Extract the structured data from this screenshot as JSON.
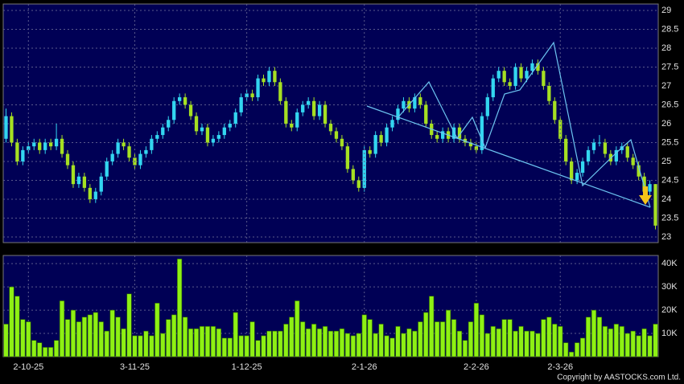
{
  "chart_data": [
    {
      "type": "candlestick",
      "up_color": "#33d6f0",
      "down_color": "#a6e022",
      "xlim": [
        -0.5,
        116.5
      ],
      "ylim": [
        22.85,
        29.17
      ],
      "yticks": [
        23,
        23.5,
        24,
        24.5,
        25,
        25.5,
        26,
        26.5,
        27,
        27.5,
        28,
        28.5,
        29
      ],
      "grid": true,
      "open": [
        25.6,
        26.2,
        25.5,
        25.0,
        25.3,
        25.4,
        25.5,
        25.3,
        25.5,
        25.4,
        25.6,
        25.2,
        24.9,
        24.4,
        24.6,
        24.3,
        24.0,
        24.2,
        24.6,
        25.0,
        25.2,
        25.5,
        25.4,
        25.1,
        24.9,
        25.2,
        25.3,
        25.6,
        25.7,
        25.9,
        26.1,
        26.6,
        26.7,
        26.5,
        26.2,
        25.8,
        25.9,
        25.5,
        25.6,
        25.7,
        25.9,
        26.0,
        26.3,
        26.7,
        26.8,
        26.7,
        27.2,
        27.1,
        27.4,
        27.1,
        26.6,
        26.0,
        25.9,
        26.3,
        26.5,
        26.6,
        26.2,
        26.5,
        26.0,
        25.8,
        25.6,
        25.4,
        24.8,
        24.5,
        24.3,
        25.3,
        25.2,
        25.7,
        25.5,
        25.9,
        26.1,
        26.4,
        26.6,
        26.4,
        26.7,
        26.5,
        26.0,
        25.7,
        25.6,
        25.8,
        25.6,
        25.9,
        25.6,
        25.5,
        25.4,
        25.3,
        26.2,
        26.7,
        27.2,
        27.4,
        27.1,
        27.0,
        27.5,
        27.2,
        27.4,
        27.6,
        27.4,
        27.0,
        26.6,
        26.1,
        25.6,
        25.0,
        24.5,
        24.7,
        25.0,
        25.3,
        25.5,
        25.5,
        25.2,
        25.0,
        25.3,
        25.4,
        25.1,
        24.9,
        24.6,
        24.2,
        24.4
      ],
      "high": [
        26.4,
        26.3,
        25.6,
        25.4,
        25.5,
        25.6,
        25.6,
        25.6,
        25.6,
        26.0,
        25.7,
        25.3,
        25.0,
        24.7,
        24.7,
        24.4,
        24.3,
        24.7,
        25.1,
        25.3,
        25.6,
        25.6,
        25.5,
        25.2,
        25.3,
        25.4,
        25.7,
        25.8,
        26.0,
        26.2,
        26.7,
        26.8,
        26.8,
        26.6,
        26.3,
        26.0,
        26.0,
        25.7,
        25.8,
        26.0,
        26.1,
        26.4,
        26.8,
        26.9,
        26.9,
        27.3,
        27.3,
        27.5,
        27.5,
        27.2,
        26.7,
        26.1,
        26.4,
        26.6,
        26.7,
        26.7,
        26.6,
        26.6,
        26.1,
        25.9,
        25.7,
        25.5,
        24.9,
        24.6,
        25.4,
        25.4,
        25.8,
        25.8,
        26.0,
        26.2,
        26.5,
        26.7,
        26.7,
        26.8,
        26.8,
        26.6,
        26.1,
        25.8,
        25.9,
        25.9,
        26.0,
        26.0,
        25.7,
        25.6,
        25.5,
        26.3,
        26.8,
        27.3,
        27.5,
        27.5,
        27.2,
        27.6,
        27.6,
        27.5,
        27.7,
        27.7,
        27.5,
        27.1,
        26.7,
        26.2,
        25.7,
        25.1,
        24.8,
        25.1,
        25.4,
        25.6,
        25.7,
        25.6,
        25.3,
        25.4,
        25.5,
        25.5,
        25.2,
        25.0,
        24.7,
        24.5,
        24.4
      ],
      "low": [
        25.5,
        25.4,
        24.9,
        24.9,
        25.2,
        25.3,
        25.2,
        25.2,
        25.3,
        25.3,
        25.1,
        24.8,
        24.3,
        24.3,
        24.2,
        23.9,
        23.9,
        24.1,
        24.5,
        24.9,
        25.1,
        25.3,
        25.0,
        24.8,
        24.8,
        25.1,
        25.2,
        25.5,
        25.6,
        25.8,
        26.0,
        26.5,
        26.4,
        26.1,
        25.7,
        25.7,
        25.4,
        25.4,
        25.5,
        25.6,
        25.8,
        25.9,
        26.2,
        26.6,
        26.6,
        26.6,
        27.0,
        27.0,
        27.0,
        26.5,
        25.9,
        25.8,
        25.8,
        26.2,
        26.4,
        26.1,
        26.1,
        25.9,
        25.7,
        25.5,
        25.3,
        24.7,
        24.4,
        24.2,
        24.2,
        25.1,
        25.1,
        25.4,
        25.4,
        25.8,
        26.0,
        26.3,
        26.3,
        26.3,
        26.4,
        25.9,
        25.6,
        25.5,
        25.5,
        25.5,
        25.5,
        25.5,
        25.4,
        25.3,
        25.2,
        25.2,
        26.1,
        26.6,
        27.1,
        27.0,
        26.9,
        26.9,
        27.1,
        27.1,
        27.3,
        27.3,
        26.9,
        26.5,
        26.0,
        25.5,
        24.9,
        24.4,
        24.4,
        24.6,
        24.9,
        25.2,
        25.4,
        25.1,
        24.9,
        24.9,
        25.2,
        25.0,
        24.8,
        24.5,
        24.1,
        24.1,
        23.2
      ],
      "close": [
        26.2,
        25.5,
        25.0,
        25.3,
        25.4,
        25.5,
        25.3,
        25.5,
        25.4,
        25.6,
        25.2,
        24.9,
        24.4,
        24.6,
        24.3,
        24.0,
        24.2,
        24.6,
        25.0,
        25.2,
        25.5,
        25.4,
        25.1,
        24.9,
        25.2,
        25.3,
        25.6,
        25.7,
        25.9,
        26.1,
        26.6,
        26.7,
        26.5,
        26.2,
        25.8,
        25.9,
        25.5,
        25.6,
        25.7,
        25.9,
        26.0,
        26.3,
        26.7,
        26.8,
        26.7,
        27.2,
        27.1,
        27.4,
        27.1,
        26.6,
        26.0,
        25.9,
        26.3,
        26.5,
        26.6,
        26.2,
        26.5,
        26.0,
        25.8,
        25.6,
        25.4,
        24.8,
        24.5,
        24.3,
        25.3,
        25.2,
        25.7,
        25.5,
        25.9,
        26.1,
        26.4,
        26.6,
        26.4,
        26.7,
        26.5,
        26.0,
        25.7,
        25.6,
        25.8,
        25.6,
        25.9,
        25.6,
        25.5,
        25.4,
        25.3,
        26.2,
        26.7,
        27.2,
        27.4,
        27.1,
        27.0,
        27.5,
        27.2,
        27.4,
        27.6,
        27.4,
        27.0,
        26.6,
        26.1,
        25.6,
        25.0,
        24.5,
        24.7,
        25.0,
        25.3,
        25.5,
        25.5,
        25.2,
        25.0,
        25.3,
        25.4,
        25.1,
        24.9,
        24.6,
        24.2,
        24.4,
        23.3
      ]
    },
    {
      "type": "bar",
      "color": "#8ef014",
      "xlim": [
        -0.5,
        116.5
      ],
      "ylim": [
        0,
        43500
      ],
      "yticks": [
        {
          "value": 10000,
          "label": "10K"
        },
        {
          "value": 20000,
          "label": "20K"
        },
        {
          "value": 30000,
          "label": "30K"
        },
        {
          "value": 40000,
          "label": "40K"
        }
      ],
      "xticks": [
        {
          "value": 4,
          "label": "2-10-25"
        },
        {
          "value": 23,
          "label": "3-11-25"
        },
        {
          "value": 43,
          "label": "1-12-25"
        },
        {
          "value": 64,
          "label": "2-1-26"
        },
        {
          "value": 84,
          "label": "2-2-26"
        },
        {
          "value": 99,
          "label": "2-3-26"
        }
      ],
      "grid": true,
      "values": [
        14000,
        30000,
        26000,
        16000,
        15000,
        7000,
        6000,
        4000,
        4000,
        7000,
        24000,
        16000,
        20000,
        15000,
        17000,
        18000,
        19000,
        15000,
        11000,
        20000,
        17000,
        12000,
        27000,
        9000,
        9000,
        11000,
        9000,
        23000,
        10000,
        16000,
        18000,
        42000,
        17000,
        12000,
        12000,
        13000,
        13000,
        13000,
        12000,
        8000,
        8000,
        19000,
        9000,
        9000,
        15000,
        7000,
        9000,
        11000,
        11000,
        11000,
        14000,
        17000,
        24000,
        15000,
        12000,
        14000,
        12000,
        13000,
        11000,
        11000,
        12000,
        10000,
        9000,
        10000,
        18000,
        16000,
        10000,
        14000,
        9000,
        8000,
        13000,
        10000,
        12000,
        11000,
        15000,
        19000,
        26000,
        15000,
        15000,
        20000,
        16000,
        11000,
        7000,
        15000,
        23000,
        18000,
        10000,
        13000,
        12000,
        16000,
        16000,
        11000,
        13000,
        11000,
        11000,
        10000,
        16000,
        17000,
        14000,
        13000,
        6000,
        2000,
        6000,
        8000,
        17000,
        20000,
        17000,
        13000,
        12000,
        14000,
        13000,
        10000,
        11000,
        9000,
        12000,
        9000,
        14000
      ]
    }
  ],
  "credit": "Copyright by AASTOCKS.com Ltd."
}
